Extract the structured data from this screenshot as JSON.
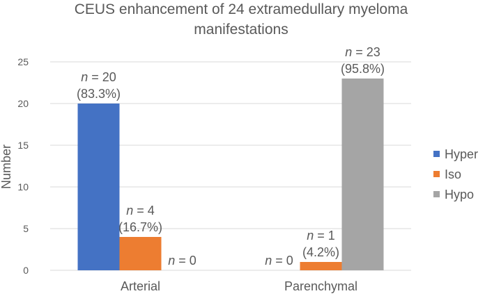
{
  "chart_data": {
    "type": "bar",
    "title_lines": [
      "CEUS enhancement of 24 extramedullary myeloma",
      "manifestations"
    ],
    "ylabel": "Number",
    "xlabel": "",
    "ylim": [
      0,
      25
    ],
    "yticks": [
      0,
      5,
      10,
      15,
      20,
      25
    ],
    "grid": true,
    "legend_position": "right",
    "categories": [
      "Arterial",
      "Parenchymal"
    ],
    "series": [
      {
        "name": "Hyper",
        "color": "#4472C4",
        "values": [
          20,
          0
        ],
        "labels": [
          [
            "n = 20",
            "(83.3%)"
          ],
          [
            "n = 0"
          ]
        ]
      },
      {
        "name": "Iso",
        "color": "#ED7D31",
        "values": [
          4,
          1
        ],
        "labels": [
          [
            "n = 4",
            "(16.7%)"
          ],
          [
            "n = 1",
            "(4.2%)"
          ]
        ]
      },
      {
        "name": "Hypo",
        "color": "#A5A5A5",
        "values": [
          0,
          23
        ],
        "labels": [
          [
            "n = 0"
          ],
          [
            "n = 23",
            "(95.8%)"
          ]
        ]
      }
    ]
  }
}
